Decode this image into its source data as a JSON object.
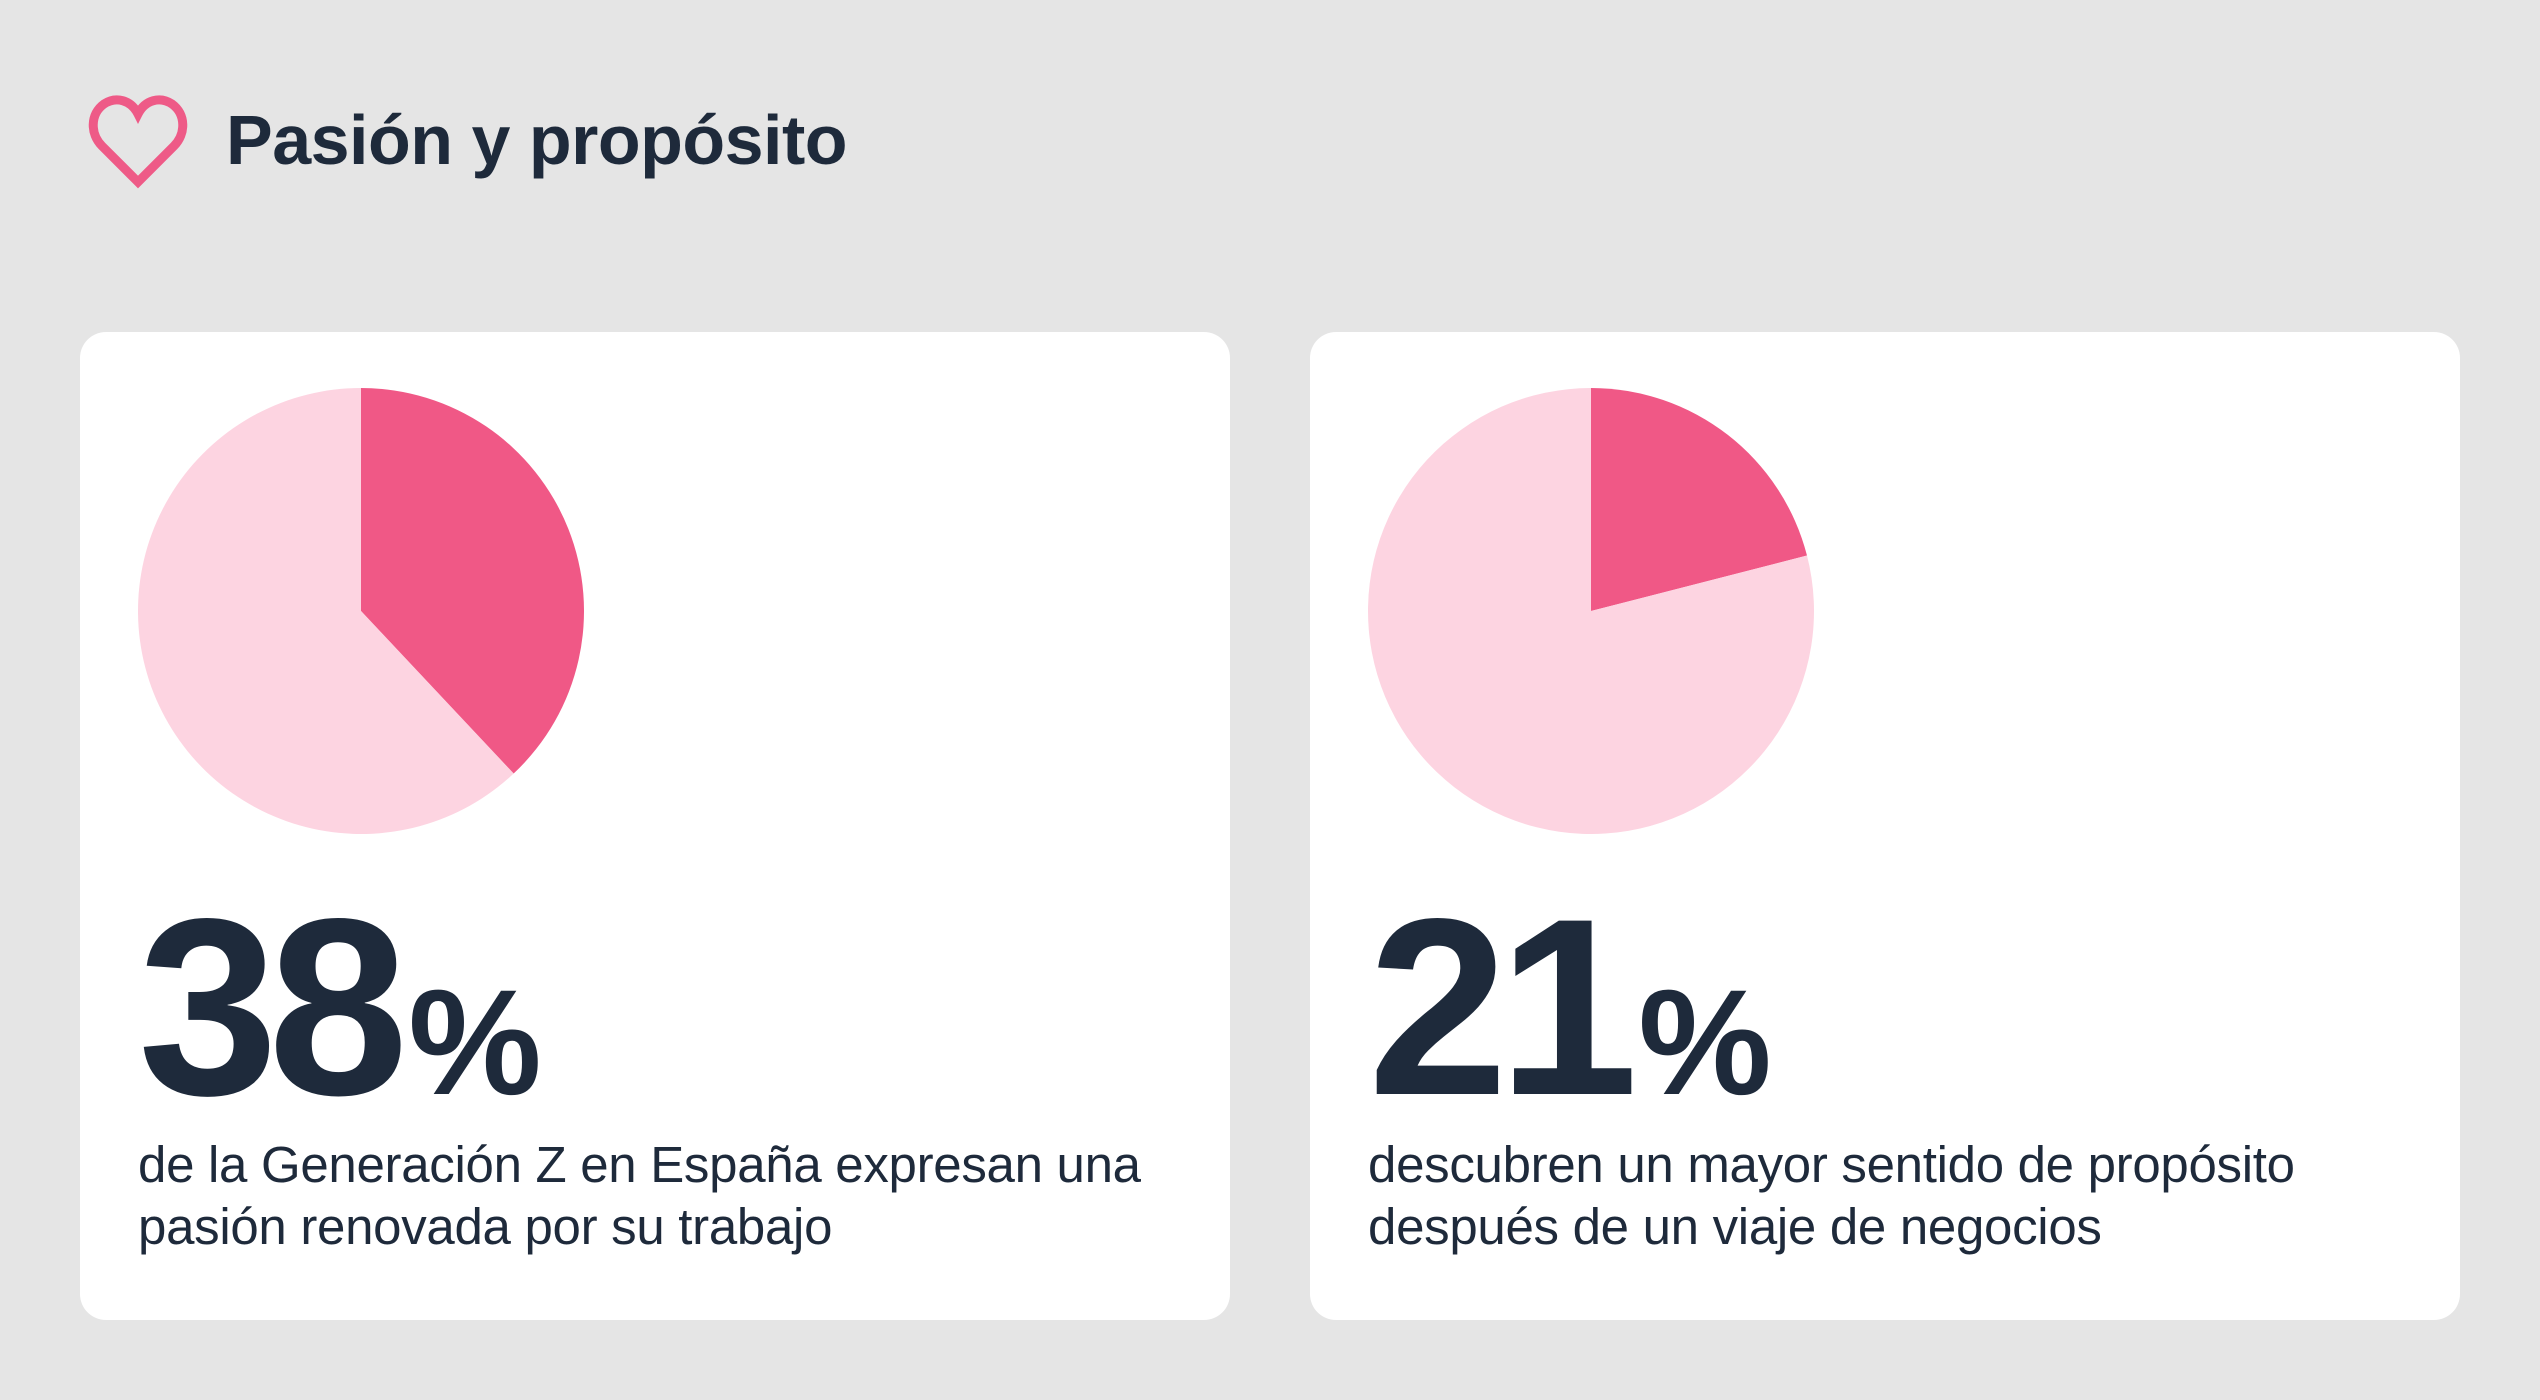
{
  "header": {
    "title": "Pasión y propósito",
    "icon": "heart-icon",
    "icon_color": "#ee5a87"
  },
  "colors": {
    "slice_highlight": "#f05886",
    "slice_rest": "#fdd4e1",
    "text": "#1e2a3b",
    "card_background": "#ffffff",
    "page_background": "#e5e5e5"
  },
  "chart_data": [
    {
      "type": "pie",
      "title": "",
      "stat_number": "38",
      "stat_unit": "%",
      "description": "de la Generación Z en España expresan una pasión renovada por su trabajo",
      "values": [
        38,
        62
      ]
    },
    {
      "type": "pie",
      "title": "",
      "stat_number": "21",
      "stat_unit": "%",
      "description": "descubren un mayor sentido de propósito después de un viaje de negocios",
      "values": [
        21,
        79
      ]
    }
  ]
}
